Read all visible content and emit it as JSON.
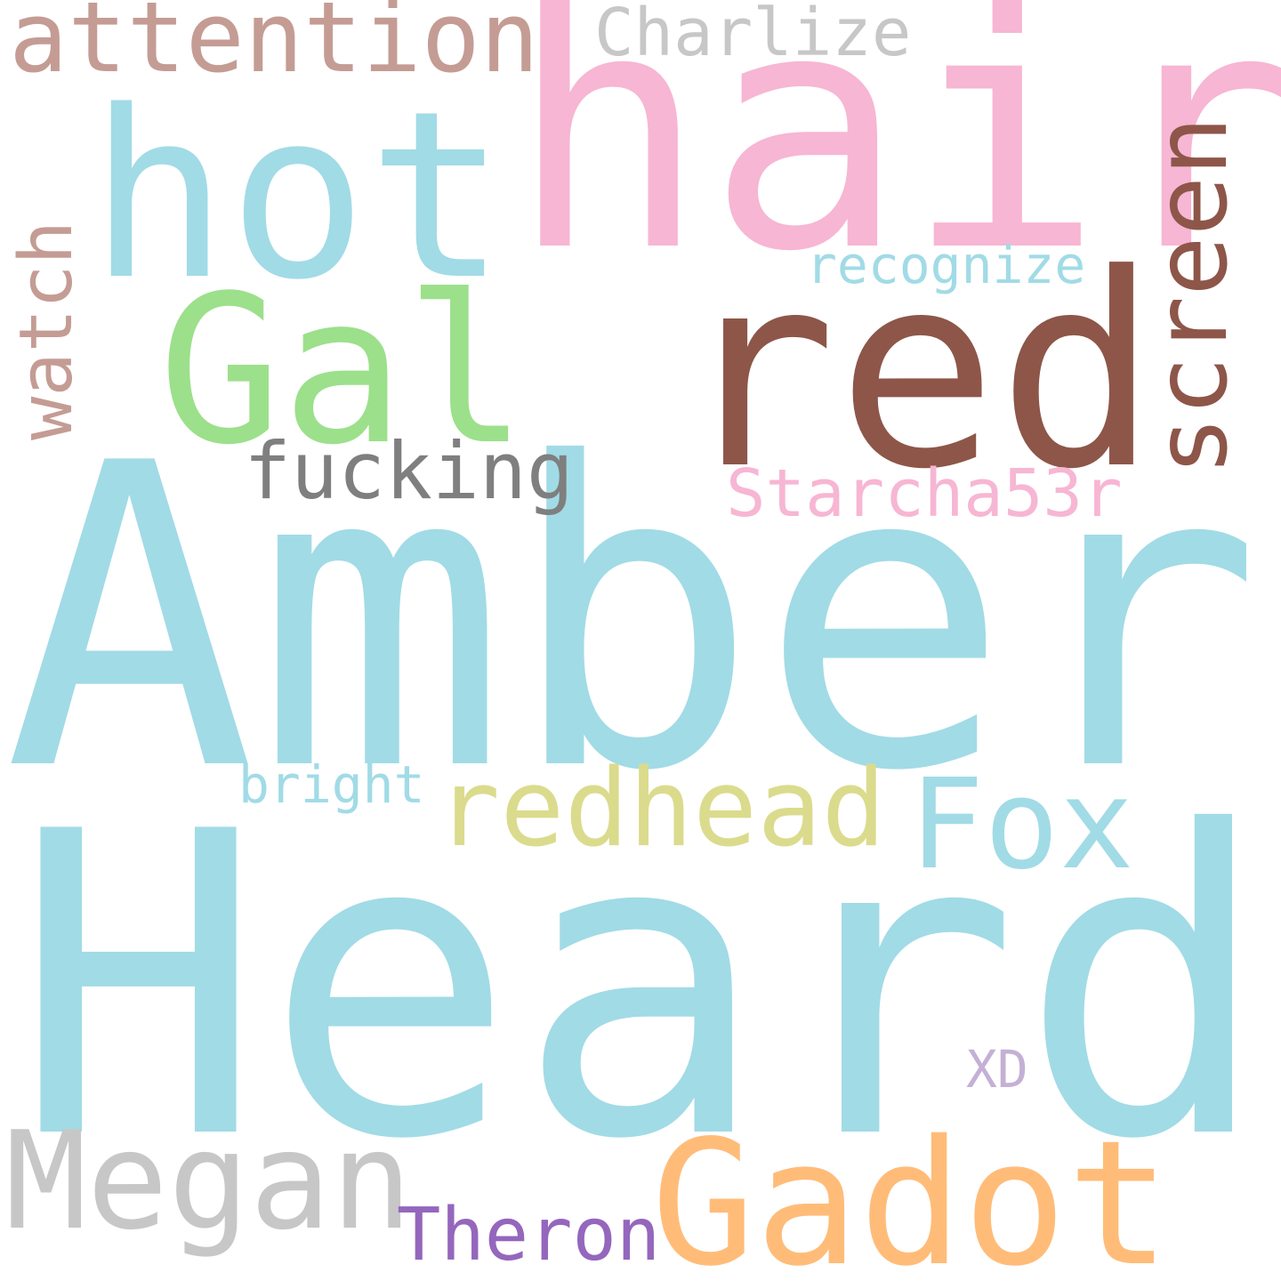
{
  "words": [
    {
      "text": "Amber",
      "color": "#a1dbe6",
      "orientation": "horizontal"
    },
    {
      "text": "Heard",
      "color": "#a1dbe6",
      "orientation": "horizontal"
    },
    {
      "text": "hair",
      "color": "#f7b6d3",
      "orientation": "horizontal"
    },
    {
      "text": "red",
      "color": "#8d5649",
      "orientation": "horizontal"
    },
    {
      "text": "hot",
      "color": "#a1dbe6",
      "orientation": "horizontal"
    },
    {
      "text": "Gal",
      "color": "#9ce08b",
      "orientation": "horizontal"
    },
    {
      "text": "Gadot",
      "color": "#ffbc79",
      "orientation": "horizontal"
    },
    {
      "text": "Megan",
      "color": "#c7c7c7",
      "orientation": "horizontal"
    },
    {
      "text": "Fox",
      "color": "#a1dbe6",
      "orientation": "horizontal"
    },
    {
      "text": "redhead",
      "color": "#dbdb8d",
      "orientation": "horizontal"
    },
    {
      "text": "attention",
      "color": "#c49c94",
      "orientation": "horizontal"
    },
    {
      "text": "screen",
      "color": "#8d5649",
      "orientation": "vertical"
    },
    {
      "text": "watch",
      "color": "#c49c94",
      "orientation": "vertical"
    },
    {
      "text": "fucking",
      "color": "#7f7f7f",
      "orientation": "horizontal"
    },
    {
      "text": "Starcha53r",
      "color": "#f7b6d3",
      "orientation": "horizontal"
    },
    {
      "text": "Charlize",
      "color": "#c7c7c7",
      "orientation": "horizontal"
    },
    {
      "text": "recognize",
      "color": "#a1dbe6",
      "orientation": "horizontal"
    },
    {
      "text": "Theron",
      "color": "#9467bd",
      "orientation": "horizontal"
    },
    {
      "text": "bright",
      "color": "#a1dbe6",
      "orientation": "horizontal"
    },
    {
      "text": "XD",
      "color": "#c5b0d5",
      "orientation": "horizontal"
    }
  ]
}
